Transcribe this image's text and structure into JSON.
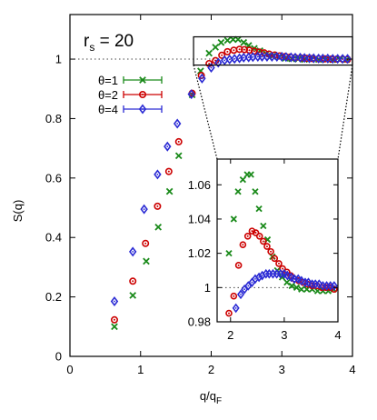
{
  "chart_data": [
    {
      "type": "scatter",
      "annotation": "r_s = 20",
      "annotation_main": "r",
      "annotation_sub": "s",
      "annotation_rest": " = 20",
      "xlabel": "q/q_F",
      "xlabel_main": "q/q",
      "xlabel_sub": "F",
      "ylabel": "S(q)",
      "xlim": [
        0,
        4
      ],
      "ylim": [
        0,
        1.15
      ],
      "xticks": [
        0,
        1,
        2,
        3,
        4
      ],
      "yticks": [
        0,
        0.2,
        0.4,
        0.6,
        0.8,
        1
      ],
      "reference_line_y": 1,
      "legend_position": "upper-left",
      "colors": {
        "theta1": "#1a8a1a",
        "theta2": "#cc0000",
        "theta4": "#2a2ad4"
      },
      "series": [
        {
          "name": "θ=1",
          "marker": "cross",
          "x": [
            0.63,
            0.89,
            1.08,
            1.25,
            1.41,
            1.54,
            1.73,
            1.85,
            1.97,
            2.06,
            2.14,
            2.23,
            2.31,
            2.38,
            2.46,
            2.53,
            2.61,
            2.69,
            2.78,
            2.87,
            2.96,
            3.05,
            3.14,
            3.23,
            3.32,
            3.42,
            3.52,
            3.62,
            3.72,
            3.82,
            3.92
          ],
          "y": [
            0.1,
            0.205,
            0.32,
            0.435,
            0.555,
            0.675,
            0.88,
            0.96,
            1.02,
            1.04,
            1.056,
            1.063,
            1.066,
            1.066,
            1.056,
            1.046,
            1.036,
            1.028,
            1.018,
            1.01,
            1.006,
            1.003,
            1.001,
            1.0,
            0.999,
            0.999,
            0.999,
            0.998,
            0.998,
            0.998,
            0.999
          ]
        },
        {
          "name": "θ=2",
          "marker": "circle",
          "x": [
            0.63,
            0.89,
            1.07,
            1.24,
            1.4,
            1.54,
            1.73,
            1.86,
            1.97,
            2.06,
            2.15,
            2.23,
            2.32,
            2.4,
            2.47,
            2.54,
            2.61,
            2.68,
            2.75,
            2.82,
            2.9,
            2.97,
            3.05,
            3.12,
            3.19,
            3.27,
            3.35,
            3.43,
            3.52,
            3.61,
            3.7,
            3.78,
            3.86,
            3.93
          ],
          "y": [
            0.123,
            0.253,
            0.38,
            0.505,
            0.622,
            0.722,
            0.885,
            0.945,
            0.985,
            0.995,
            1.013,
            1.025,
            1.03,
            1.033,
            1.032,
            1.03,
            1.027,
            1.024,
            1.021,
            1.017,
            1.014,
            1.011,
            1.009,
            1.007,
            1.005,
            1.004,
            1.003,
            1.002,
            1.001,
            1.001,
            1.0,
            1.0,
            1.0,
            0.999
          ]
        },
        {
          "name": "θ=4",
          "marker": "diamond",
          "x": [
            0.63,
            0.89,
            1.05,
            1.24,
            1.38,
            1.52,
            1.72,
            1.87,
            2.0,
            2.1,
            2.19,
            2.26,
            2.33,
            2.4,
            2.46,
            2.53,
            2.59,
            2.66,
            2.72,
            2.79,
            2.86,
            2.93,
            3.0,
            3.06,
            3.13,
            3.19,
            3.26,
            3.32,
            3.39,
            3.45,
            3.52,
            3.58,
            3.65,
            3.72,
            3.79,
            3.86,
            3.93
          ],
          "y": [
            0.185,
            0.352,
            0.495,
            0.612,
            0.706,
            0.783,
            0.882,
            0.935,
            0.971,
            0.988,
            0.996,
            0.999,
            1.001,
            1.003,
            1.005,
            1.006,
            1.007,
            1.008,
            1.008,
            1.008,
            1.008,
            1.008,
            1.008,
            1.007,
            1.006,
            1.005,
            1.005,
            1.004,
            1.003,
            1.003,
            1.002,
            1.002,
            1.002,
            1.001,
            1.001,
            1.001,
            1.001
          ]
        }
      ]
    },
    {
      "type": "scatter",
      "role": "inset zoom of the main panel",
      "xlim": [
        1.75,
        4
      ],
      "ylim": [
        0.98,
        1.075
      ],
      "xticks": [
        2,
        3,
        4
      ],
      "yticks": [
        0.98,
        1,
        1.02,
        1.04,
        1.06
      ],
      "ytick_labels": [
        "0.98",
        "1",
        "1.02",
        "1.04",
        "1.06"
      ],
      "reference_line_y": 1
    }
  ],
  "legend": {
    "items": [
      {
        "label": "θ=1",
        "color": "#1a8a1a",
        "marker": "cross"
      },
      {
        "label": "θ=2",
        "color": "#cc0000",
        "marker": "circle"
      },
      {
        "label": "θ=4",
        "color": "#2a2ad4",
        "marker": "diamond"
      }
    ]
  }
}
